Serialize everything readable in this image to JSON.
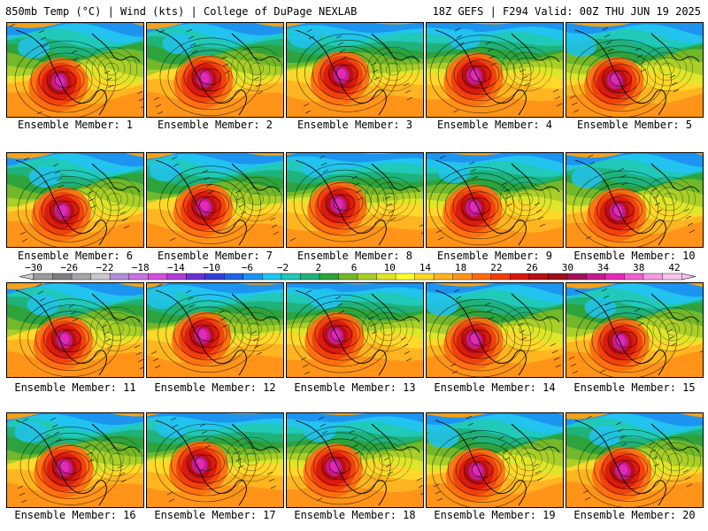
{
  "header": {
    "left": "850mb Temp (°C) | Wind (kts) | College of DuPage NEXLAB",
    "right": "18Z GEFS | F294 Valid: 00Z THU JUN 19 2025"
  },
  "members": [
    "Ensemble Member: 1",
    "Ensemble Member: 2",
    "Ensemble Member: 3",
    "Ensemble Member: 4",
    "Ensemble Member: 5",
    "Ensemble Member: 6",
    "Ensemble Member: 7",
    "Ensemble Member: 8",
    "Ensemble Member: 9",
    "Ensemble Member: 10",
    "Ensemble Member: 11",
    "Ensemble Member: 12",
    "Ensemble Member: 13",
    "Ensemble Member: 14",
    "Ensemble Member: 15",
    "Ensemble Member: 16",
    "Ensemble Member: 17",
    "Ensemble Member: 18",
    "Ensemble Member: 19",
    "Ensemble Member: 20"
  ],
  "colorbar": {
    "labels": [
      "−30",
      "−26",
      "−22",
      "−18",
      "−14",
      "−10",
      "−6",
      "−2",
      "2",
      "6",
      "10",
      "14",
      "18",
      "22",
      "26",
      "30",
      "34",
      "38",
      "42"
    ],
    "colors": [
      "#9a9a9a",
      "#7f7f7f",
      "#a6a6a6",
      "#c8c8c8",
      "#b38bd9",
      "#c972e6",
      "#d24fe0",
      "#b03bd6",
      "#6a2fd6",
      "#3340d6",
      "#1f62e6",
      "#1c94f0",
      "#22c3ef",
      "#20c9b8",
      "#1fb27a",
      "#2ea33c",
      "#72b82a",
      "#a9cf28",
      "#dfe62a",
      "#ffff2e",
      "#ffd82a",
      "#ffb520",
      "#ff9418",
      "#ff6a10",
      "#f03d0c",
      "#d8180c",
      "#b80f14",
      "#96101c",
      "#a0145a",
      "#c31c8c",
      "#e22ab6",
      "#ef5fd0",
      "#f59ae0",
      "#f7c2ee"
    ]
  }
}
